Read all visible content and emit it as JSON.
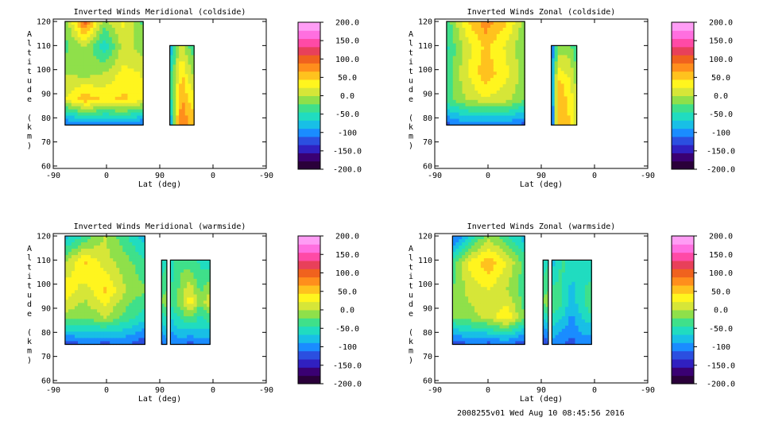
{
  "chart_data": [
    {
      "type": "heatmap",
      "title": "Inverted Winds Meridional (coldside)",
      "xlabel": "Lat (deg)",
      "ylabel": "Altitude (km)",
      "x_tick_labels": [
        "-90",
        "0",
        "90",
        "0",
        "-90"
      ],
      "y_ticks": [
        60,
        70,
        80,
        90,
        100,
        110,
        120
      ],
      "ylim": [
        59,
        121
      ],
      "colorbar": {
        "ticks": [
          "200.0",
          "150.0",
          "100.0",
          "50.0",
          "0.0",
          "-50.0",
          "-100",
          "-150.0",
          "-200.0"
        ],
        "range": [
          -200,
          200
        ]
      },
      "segments": [
        {
          "x": [
            -70,
            62
          ],
          "alt": [
            77,
            120
          ],
          "values": [
            [
              -20,
              100,
              -10,
              30,
              -30
            ],
            [
              -30,
              0,
              -60,
              10,
              -10
            ],
            [
              0,
              -10,
              0,
              30,
              20
            ],
            [
              20,
              60,
              40,
              50,
              30
            ],
            [
              -120,
              -100,
              -110,
              -100,
              -120
            ]
          ]
        },
        {
          "x": [
            107,
            148
          ],
          "alt": [
            77,
            110
          ],
          "values": [
            [
              -100,
              -20,
              10,
              -20,
              -40
            ],
            [
              -40,
              10,
              60,
              30,
              10
            ],
            [
              -120,
              40,
              90,
              70,
              60
            ]
          ]
        }
      ]
    },
    {
      "type": "heatmap",
      "title": "Inverted Winds Zonal (coldside)",
      "xlabel": "Lat (deg)",
      "ylabel": "Altitude (km)",
      "x_tick_labels": [
        "-90",
        "0",
        "90",
        "0",
        "-90"
      ],
      "y_ticks": [
        60,
        70,
        80,
        90,
        100,
        110,
        120
      ],
      "ylim": [
        59,
        121
      ],
      "colorbar": {
        "ticks": [
          "200.0",
          "150.0",
          "100.0",
          "50.0",
          "0.0",
          "-50.0",
          "-100",
          "-150.0",
          "-200.0"
        ],
        "range": [
          -200,
          200
        ]
      },
      "segments": [
        {
          "x": [
            -70,
            62
          ],
          "alt": [
            77,
            120
          ],
          "values": [
            [
              -40,
              40,
              80,
              50,
              -10
            ],
            [
              -50,
              10,
              50,
              20,
              -20
            ],
            [
              -40,
              20,
              60,
              30,
              -10
            ],
            [
              -30,
              0,
              20,
              10,
              -20
            ],
            [
              -120,
              -100,
              -110,
              -100,
              -120
            ]
          ]
        },
        {
          "x": [
            107,
            150
          ],
          "alt": [
            77,
            110
          ],
          "values": [
            [
              -120,
              -20,
              -10,
              -20,
              -40
            ],
            [
              -120,
              60,
              40,
              30,
              -10
            ],
            [
              -150,
              50,
              70,
              40,
              10
            ]
          ]
        }
      ]
    },
    {
      "type": "heatmap",
      "title": "Inverted Winds Meridional (warmside)",
      "xlabel": "Lat (deg)",
      "ylabel": "Altitude (km)",
      "x_tick_labels": [
        "-90",
        "0",
        "90",
        "0",
        "-90"
      ],
      "y_ticks": [
        60,
        70,
        80,
        90,
        100,
        110,
        120
      ],
      "ylim": [
        59,
        121
      ],
      "colorbar": {
        "ticks": [
          "200.0",
          "150.0",
          "100.0",
          "50.0",
          "0.0",
          "-50.0",
          "-100",
          "-150.0",
          "-200.0"
        ],
        "range": [
          -200,
          200
        ]
      },
      "segments": [
        {
          "x": [
            -70,
            65
          ],
          "alt": [
            75,
            120
          ],
          "values": [
            [
              -80,
              -40,
              0,
              -40,
              -80
            ],
            [
              0,
              50,
              10,
              -10,
              -40
            ],
            [
              40,
              10,
              50,
              0,
              -20
            ],
            [
              -10,
              -20,
              0,
              -30,
              -60
            ],
            [
              -130,
              -110,
              -120,
              -110,
              -130
            ]
          ]
        },
        {
          "x": [
            93,
            102
          ],
          "alt": [
            75,
            110
          ],
          "values": [
            [
              -60,
              -50
            ],
            [
              -20,
              -10
            ],
            [
              -120,
              -100
            ]
          ]
        },
        {
          "x": [
            108,
            175
          ],
          "alt": [
            75,
            110
          ],
          "values": [
            [
              -60,
              -30,
              -40,
              -50,
              -60
            ],
            [
              -40,
              -10,
              40,
              -20,
              20
            ],
            [
              -110,
              -100,
              -120,
              -100,
              -110
            ]
          ]
        }
      ]
    },
    {
      "type": "heatmap",
      "title": "Inverted Winds Zonal (warmside)",
      "xlabel": "Lat (deg)",
      "ylabel": "Altitude (km)",
      "x_tick_labels": [
        "-90",
        "0",
        "90",
        "0",
        "-90"
      ],
      "y_ticks": [
        60,
        70,
        80,
        90,
        100,
        110,
        120
      ],
      "ylim": [
        59,
        121
      ],
      "colorbar": {
        "ticks": [
          "200.0",
          "150.0",
          "100.0",
          "50.0",
          "0.0",
          "-50.0",
          "-100",
          "-150.0",
          "-200.0"
        ],
        "range": [
          -200,
          200
        ]
      },
      "segments": [
        {
          "x": [
            -60,
            62
          ],
          "alt": [
            75,
            120
          ],
          "values": [
            [
              -120,
              -60,
              -10,
              -40,
              -80
            ],
            [
              -40,
              30,
              60,
              20,
              -30
            ],
            [
              -20,
              10,
              20,
              0,
              -40
            ],
            [
              -20,
              -10,
              10,
              40,
              -20
            ],
            [
              -130,
              -110,
              -120,
              -110,
              -130
            ]
          ]
        },
        {
          "x": [
            93,
            102
          ],
          "alt": [
            75,
            110
          ],
          "values": [
            [
              -60,
              -50
            ],
            [
              -20,
              -10
            ],
            [
              -140,
              -120
            ]
          ]
        },
        {
          "x": [
            108,
            175
          ],
          "alt": [
            75,
            110
          ],
          "values": [
            [
              -80,
              -40,
              -60,
              -50,
              -70
            ],
            [
              -20,
              -40,
              -80,
              -50,
              -20
            ],
            [
              -100,
              -110,
              -120,
              -100,
              -110
            ]
          ]
        }
      ]
    }
  ],
  "footer": "2008255v01 Wed Aug 10 08:45:56 2016",
  "colormap": [
    "#2a003a",
    "#3a0073",
    "#3020c0",
    "#2b4fe0",
    "#1a8cff",
    "#18bfe6",
    "#20dcc0",
    "#3fe08a",
    "#8fe04a",
    "#d6e638",
    "#fff51e",
    "#ffc21e",
    "#ff8e1c",
    "#f0621e",
    "#e8405a",
    "#ff4aa6",
    "#ff6fe0",
    "#ff9df5"
  ]
}
